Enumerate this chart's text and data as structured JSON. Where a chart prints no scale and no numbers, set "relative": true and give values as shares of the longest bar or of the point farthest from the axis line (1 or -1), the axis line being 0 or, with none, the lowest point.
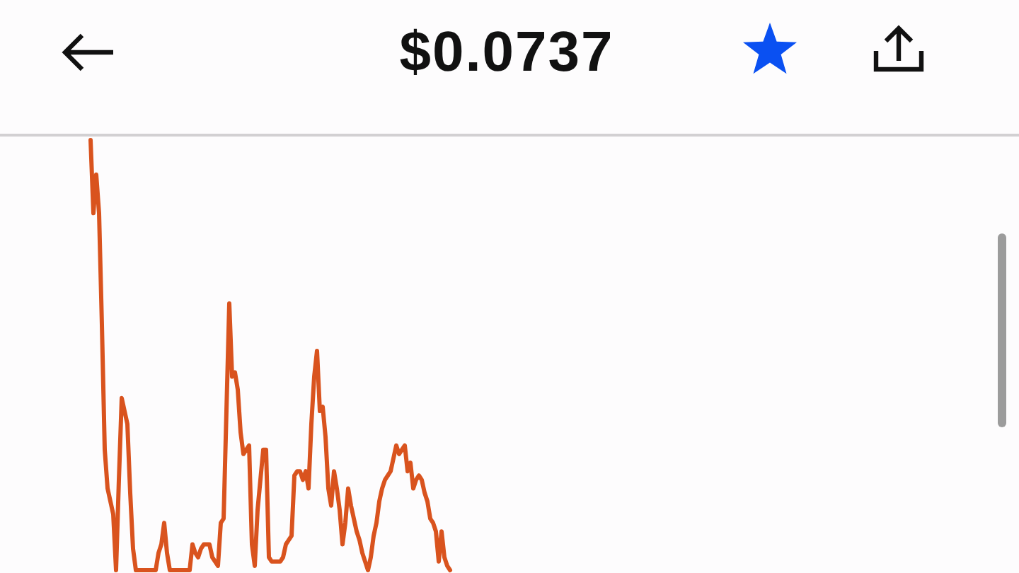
{
  "chart_data": {
    "type": "line",
    "title": "$0.0737",
    "relative": true,
    "categories": [
      null,
      null,
      null,
      null,
      null,
      null,
      null,
      null,
      null,
      null,
      null,
      null,
      null,
      null,
      null,
      null,
      null,
      null,
      null,
      null,
      null,
      null,
      null,
      null,
      null,
      null,
      null,
      null,
      null,
      null,
      null,
      null,
      null,
      null,
      null,
      null,
      null,
      null,
      null,
      null,
      null,
      null,
      null,
      null,
      null,
      null,
      null,
      null,
      null,
      null,
      null,
      null,
      null,
      null,
      null,
      null,
      null,
      null,
      null,
      null,
      null,
      null,
      null,
      null,
      null,
      null,
      null,
      null,
      null,
      null,
      null,
      null,
      null,
      null,
      null,
      null,
      null,
      null,
      null,
      null,
      null,
      null,
      null,
      null,
      null,
      null,
      null,
      null,
      null,
      null,
      null,
      null,
      null,
      null,
      null,
      null,
      null,
      null,
      null,
      null,
      null,
      null,
      null,
      null,
      null,
      null,
      null,
      null,
      null,
      null,
      null,
      null,
      null,
      null,
      null,
      null,
      null,
      null,
      null,
      null,
      null,
      null,
      null,
      null,
      null,
      null,
      null,
      null
    ],
    "series": [
      {
        "color": "#d9531e",
        "values": [
          1,
          0.83,
          0.92,
          0.83,
          0.57,
          0.28,
          0.19,
          0.16,
          0.13,
          0,
          0.21,
          0.4,
          0.37,
          0.34,
          0.18,
          0.05,
          0,
          0,
          0,
          0,
          0,
          0,
          0,
          0,
          0.04,
          0.06,
          0.11,
          0.04,
          0,
          0,
          0,
          0,
          0,
          0,
          0,
          0,
          0.06,
          0.04,
          0.03,
          0.05,
          0.06,
          0.06,
          0.06,
          0.03,
          0.02,
          0.01,
          0.11,
          0.12,
          0.37,
          0.62,
          0.45,
          0.46,
          0.42,
          0.32,
          0.27,
          0.28,
          0.29,
          0.06,
          0.01,
          0.14,
          0.21,
          0.28,
          0.28,
          0.03,
          0.02,
          0.02,
          0.02,
          0.02,
          0.03,
          0.06,
          0.07,
          0.08,
          0.22,
          0.23,
          0.23,
          0.21,
          0.23,
          0.19,
          0.34,
          0.45,
          0.51,
          0.37,
          0.38,
          0.31,
          0.19,
          0.15,
          0.23,
          0.19,
          0.14,
          0.06,
          0.11,
          0.19,
          0.15,
          0.12,
          0.09,
          0.07,
          0.04,
          0.02,
          0,
          0.03,
          0.08,
          0.11,
          0.16,
          0.19,
          0.21,
          0.22,
          0.23,
          0.26,
          0.29,
          0.27,
          0.28,
          0.29,
          0.23,
          0.25,
          0.19,
          0.21,
          0.22,
          0.21,
          0.18,
          0.16,
          0.12,
          0.11,
          0.09,
          0.02,
          0.09,
          0.03,
          0.01,
          0
        ]
      }
    ]
  }
}
